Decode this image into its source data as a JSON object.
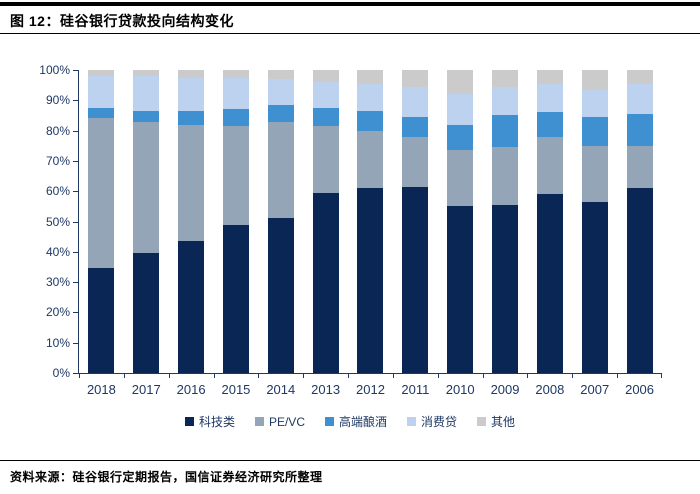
{
  "header": {
    "title": "图 12：硅谷银行贷款投向结构变化"
  },
  "footer": {
    "source": "资料来源：硅谷银行定期报告，国信证券经济研究所整理"
  },
  "chart_data": {
    "type": "bar",
    "stacked": true,
    "unit": "%",
    "title": "硅谷银行贷款投向结构变化",
    "xlabel": "",
    "ylabel": "",
    "ylim": [
      0,
      100
    ],
    "ytick_step": 10,
    "ytick_suffix": "%",
    "grid": false,
    "legend_position": "bottom",
    "axis_color": "#1f3864",
    "label_color": "#1f3864",
    "categories": [
      "2018",
      "2017",
      "2016",
      "2015",
      "2014",
      "2013",
      "2012",
      "2011",
      "2010",
      "2009",
      "2008",
      "2007",
      "2006"
    ],
    "series": [
      {
        "name": "科技类",
        "color": "#0a2655",
        "values": [
          34.5,
          39.5,
          43.5,
          49.0,
          51.0,
          59.5,
          61.0,
          61.5,
          55.0,
          55.5,
          59.0,
          56.5,
          61.0
        ]
      },
      {
        "name": "PE/VC",
        "color": "#94a5b8",
        "values": [
          49.5,
          43.5,
          38.5,
          32.5,
          32.0,
          22.0,
          19.0,
          16.5,
          18.5,
          19.0,
          19.0,
          18.5,
          14.0
        ]
      },
      {
        "name": "高端酿酒",
        "color": "#3f90d1",
        "values": [
          3.5,
          3.5,
          4.5,
          5.5,
          5.5,
          6.0,
          6.5,
          6.5,
          8.5,
          10.5,
          8.0,
          9.5,
          10.5
        ]
      },
      {
        "name": "消费贷",
        "color": "#bcd2ef",
        "values": [
          10.5,
          11.5,
          11.0,
          10.5,
          8.5,
          8.5,
          9.0,
          10.0,
          10.0,
          9.5,
          9.5,
          9.0,
          10.0
        ]
      },
      {
        "name": "其他",
        "color": "#cbcbcb",
        "values": [
          2.0,
          2.0,
          2.5,
          2.5,
          3.0,
          4.0,
          4.5,
          5.5,
          8.0,
          5.5,
          4.5,
          6.5,
          4.5
        ]
      }
    ]
  }
}
